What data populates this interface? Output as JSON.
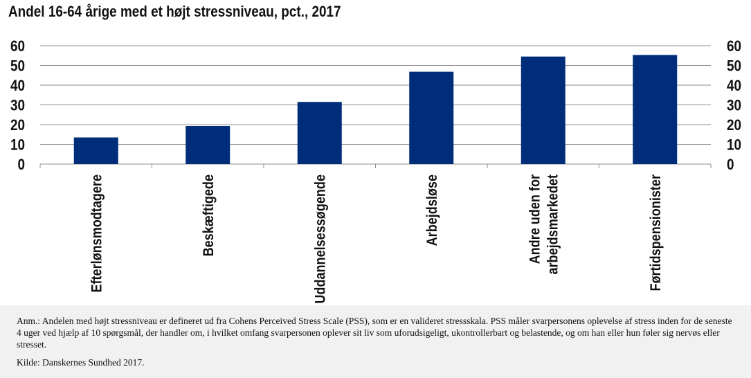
{
  "chart_data": {
    "type": "bar",
    "title": "Andel 16-64 årige med et højt stressniveau, pct., 2017",
    "categories": [
      "Efterlønsmodtagere",
      "Beskæftigede",
      "Uddannelsessøgende",
      "Arbejdsløse",
      "Andre uden for arbejdsmarkedet",
      "Førtidspensionister"
    ],
    "category_lines": [
      [
        "Efterlønsmodtagere"
      ],
      [
        "Beskæftigede"
      ],
      [
        "Uddannelsessøgende"
      ],
      [
        "Arbejdsløse"
      ],
      [
        "Andre uden for",
        "arbejdsmarkedet"
      ],
      [
        "Førtidspensionister"
      ]
    ],
    "values": [
      13.5,
      19.3,
      31.5,
      46.8,
      54.5,
      55.3
    ],
    "ylim": [
      0,
      60
    ],
    "yticks": [
      0,
      10,
      20,
      30,
      40,
      50,
      60
    ],
    "secondary_y_axis": true,
    "grid": true,
    "bar_color": "#002d7a",
    "xlabel": "",
    "ylabel": ""
  },
  "footer": {
    "note": "Anm.: Andelen med højt stressniveau er defineret ud fra Cohens Perceived Stress Scale (PSS), som er en valideret stressskala. PSS måler svarpersonens oplevelse af stress inden for de seneste 4 uger ved hjælp af 10 spørgsmål, der handler om, i hvilket omfang svarpersonen oplever sit liv som uforudsigeligt, ukontrollerbart og belastende, og om han eller hun føler sig nervøs eller stresset.",
    "source": "Kilde: Danskernes Sundhed 2017."
  }
}
